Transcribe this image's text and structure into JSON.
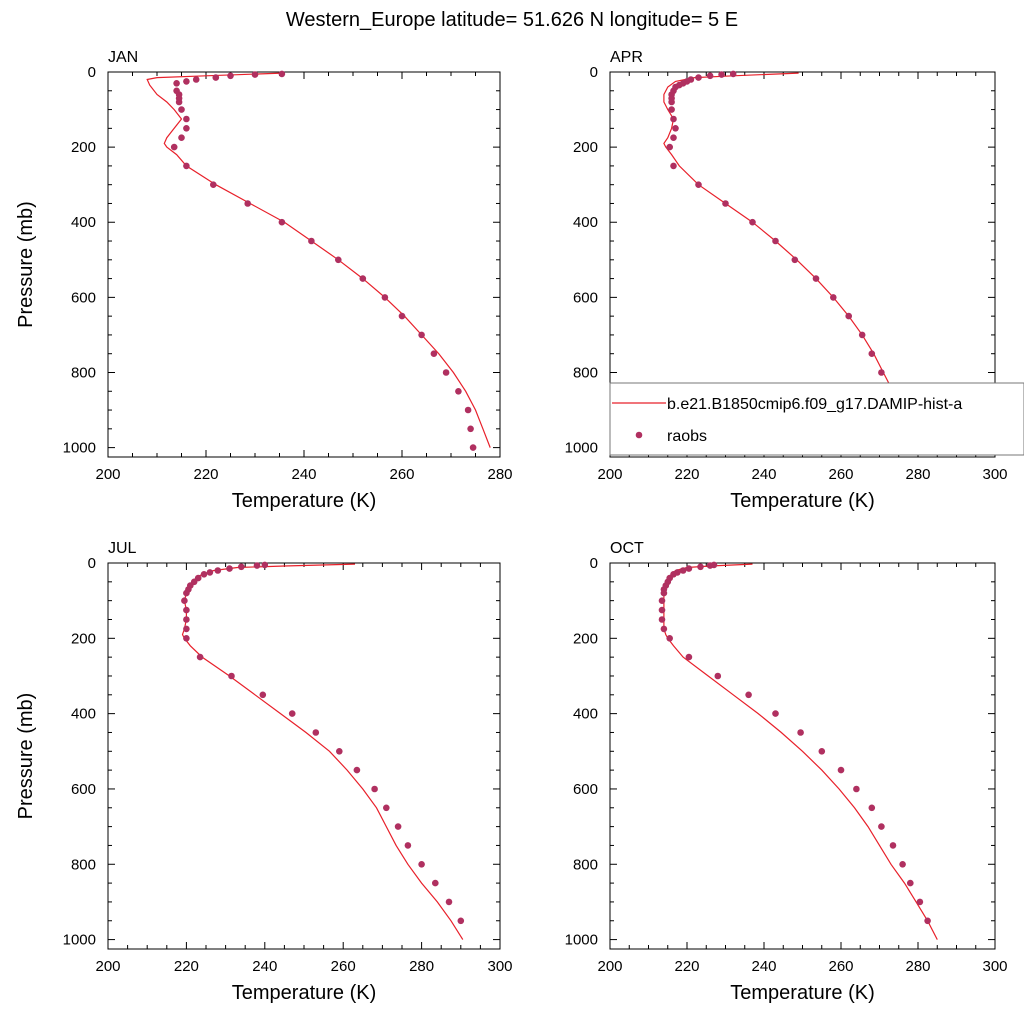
{
  "title": "Western_Europe  latitude= 51.626 N longitude= 5 E",
  "legend": {
    "placement": "inside APR panel, lower right",
    "model_label": "b.e21.B1850cmip6.f09_g17.DAMIP-hist-a",
    "obs_label": "raobs"
  },
  "colors": {
    "model_line": "#e8202a",
    "obs_marker": "#b03060",
    "axis": "#000000"
  },
  "chart_data": [
    {
      "type": "line",
      "panel_label": "JAN",
      "xlabel": "Temperature (K)",
      "ylabel": "Pressure (mb)",
      "xlim": [
        200,
        280
      ],
      "ylim": [
        1025,
        0
      ],
      "y_reversed": true,
      "xticks": [
        200,
        220,
        240,
        260,
        280
      ],
      "yticks": [
        0,
        200,
        400,
        600,
        800,
        1000
      ],
      "grid": false,
      "series": [
        {
          "name": "b.e21.B1850cmip6.f09_g17.DAMIP-hist-a",
          "kind": "line",
          "points": [
            [
              235.5,
              3
            ],
            [
              220,
              10
            ],
            [
              210,
              15
            ],
            [
              208,
              20
            ],
            [
              208.5,
              35
            ],
            [
              210,
              60
            ],
            [
              212,
              80
            ],
            [
              213.5,
              100
            ],
            [
              215,
              125
            ],
            [
              213.5,
              150
            ],
            [
              212,
              175
            ],
            [
              211.5,
              190
            ],
            [
              212,
              200
            ],
            [
              214,
              220
            ],
            [
              216,
              250
            ],
            [
              222,
              300
            ],
            [
              229,
              350
            ],
            [
              236,
              400
            ],
            [
              241.5,
              450
            ],
            [
              247,
              500
            ],
            [
              252,
              550
            ],
            [
              256.5,
              600
            ],
            [
              260.5,
              650
            ],
            [
              264,
              700
            ],
            [
              267.5,
              750
            ],
            [
              270.5,
              800
            ],
            [
              273,
              850
            ],
            [
              275,
              900
            ],
            [
              276.5,
              950
            ],
            [
              278,
              1000
            ]
          ]
        },
        {
          "name": "raobs",
          "kind": "scatter",
          "points": [
            [
              235.5,
              5
            ],
            [
              230,
              7
            ],
            [
              225,
              10
            ],
            [
              222,
              15
            ],
            [
              218,
              20
            ],
            [
              216,
              25
            ],
            [
              214,
              30
            ],
            [
              214,
              50
            ],
            [
              214.5,
              60
            ],
            [
              214.5,
              70
            ],
            [
              214.5,
              80
            ],
            [
              215,
              100
            ],
            [
              216,
              125
            ],
            [
              216,
              150
            ],
            [
              215,
              175
            ],
            [
              213.5,
              200
            ],
            [
              216,
              250
            ],
            [
              221.5,
              300
            ],
            [
              228.5,
              350
            ],
            [
              235.5,
              400
            ],
            [
              241.5,
              450
            ],
            [
              247,
              500
            ],
            [
              252,
              550
            ],
            [
              256.5,
              600
            ],
            [
              260,
              650
            ],
            [
              264,
              700
            ],
            [
              266.5,
              750
            ],
            [
              269,
              800
            ],
            [
              271.5,
              850
            ],
            [
              273.5,
              900
            ],
            [
              274,
              950
            ],
            [
              274.5,
              1000
            ]
          ]
        }
      ]
    },
    {
      "type": "line",
      "panel_label": "APR",
      "xlabel": "Temperature (K)",
      "ylabel": "",
      "xlim": [
        200,
        300
      ],
      "ylim": [
        1025,
        0
      ],
      "y_reversed": true,
      "xticks": [
        200,
        220,
        240,
        260,
        280,
        300
      ],
      "yticks": [
        0,
        200,
        400,
        600,
        800,
        1000
      ],
      "grid": false,
      "series": [
        {
          "name": "b.e21.B1850cmip6.f09_g17.DAMIP-hist-a",
          "kind": "line",
          "points": [
            [
              249,
              3
            ],
            [
              232,
              10
            ],
            [
              222,
              15
            ],
            [
              217,
              25
            ],
            [
              215,
              40
            ],
            [
              214,
              60
            ],
            [
              214,
              80
            ],
            [
              215,
              100
            ],
            [
              216.5,
              125
            ],
            [
              216,
              150
            ],
            [
              215,
              175
            ],
            [
              214,
              190
            ],
            [
              214.5,
              200
            ],
            [
              216,
              220
            ],
            [
              218,
              250
            ],
            [
              223,
              300
            ],
            [
              230,
              350
            ],
            [
              237,
              400
            ],
            [
              243,
              450
            ],
            [
              248.5,
              500
            ],
            [
              253.5,
              550
            ],
            [
              258,
              600
            ],
            [
              262,
              650
            ],
            [
              265.5,
              700
            ],
            [
              268.5,
              750
            ],
            [
              271,
              800
            ],
            [
              273.5,
              850
            ],
            [
              276.5,
              900
            ],
            [
              280,
              950
            ],
            [
              283,
              1000
            ]
          ]
        },
        {
          "name": "raobs",
          "kind": "scatter",
          "points": [
            [
              232,
              5
            ],
            [
              229,
              7
            ],
            [
              226,
              10
            ],
            [
              223,
              15
            ],
            [
              221,
              20
            ],
            [
              220,
              25
            ],
            [
              219,
              30
            ],
            [
              218,
              35
            ],
            [
              217,
              40
            ],
            [
              216.5,
              50
            ],
            [
              216,
              60
            ],
            [
              216,
              70
            ],
            [
              216,
              80
            ],
            [
              216,
              100
            ],
            [
              216.5,
              125
            ],
            [
              217,
              150
            ],
            [
              216.5,
              175
            ],
            [
              215.5,
              200
            ],
            [
              216.5,
              250
            ],
            [
              223,
              300
            ],
            [
              230,
              350
            ],
            [
              237,
              400
            ],
            [
              243,
              450
            ],
            [
              248,
              500
            ],
            [
              253.5,
              550
            ],
            [
              258,
              600
            ],
            [
              262,
              650
            ],
            [
              265.5,
              700
            ],
            [
              268,
              750
            ],
            [
              270.5,
              800
            ],
            [
              273.5,
              850
            ],
            [
              276.5,
              900
            ],
            [
              280.5,
              950
            ]
          ]
        }
      ]
    },
    {
      "type": "line",
      "panel_label": "JUL",
      "xlabel": "Temperature (K)",
      "ylabel": "Pressure (mb)",
      "xlim": [
        200,
        300
      ],
      "ylim": [
        1025,
        0
      ],
      "y_reversed": true,
      "xticks": [
        200,
        220,
        240,
        260,
        280,
        300
      ],
      "yticks": [
        0,
        200,
        400,
        600,
        800,
        1000
      ],
      "grid": false,
      "series": [
        {
          "name": "b.e21.B1850cmip6.f09_g17.DAMIP-hist-a",
          "kind": "line",
          "points": [
            [
              263,
              3
            ],
            [
              245,
              8
            ],
            [
              233,
              12
            ],
            [
              227,
              20
            ],
            [
              223,
              35
            ],
            [
              221,
              55
            ],
            [
              220,
              80
            ],
            [
              219.5,
              100
            ],
            [
              220,
              125
            ],
            [
              220,
              150
            ],
            [
              219.5,
              175
            ],
            [
              219,
              190
            ],
            [
              219.5,
              200
            ],
            [
              221,
              220
            ],
            [
              224,
              250
            ],
            [
              231,
              300
            ],
            [
              237.5,
              350
            ],
            [
              244,
              400
            ],
            [
              250.5,
              450
            ],
            [
              256.5,
              500
            ],
            [
              261,
              550
            ],
            [
              265,
              600
            ],
            [
              268.5,
              650
            ],
            [
              271,
              700
            ],
            [
              273.5,
              750
            ],
            [
              276.5,
              800
            ],
            [
              280,
              850
            ],
            [
              284,
              900
            ],
            [
              287.5,
              950
            ],
            [
              290.5,
              1000
            ]
          ]
        },
        {
          "name": "raobs",
          "kind": "scatter",
          "points": [
            [
              240,
              5
            ],
            [
              238,
              7
            ],
            [
              234,
              10
            ],
            [
              231,
              15
            ],
            [
              228,
              20
            ],
            [
              226,
              25
            ],
            [
              224.5,
              30
            ],
            [
              223,
              40
            ],
            [
              222,
              50
            ],
            [
              221,
              60
            ],
            [
              220.5,
              70
            ],
            [
              220,
              80
            ],
            [
              219.5,
              100
            ],
            [
              220,
              125
            ],
            [
              220,
              150
            ],
            [
              220,
              175
            ],
            [
              220,
              200
            ],
            [
              223.5,
              250
            ],
            [
              231.5,
              300
            ],
            [
              239.5,
              350
            ],
            [
              247,
              400
            ],
            [
              253,
              450
            ],
            [
              259,
              500
            ],
            [
              263.5,
              550
            ],
            [
              268,
              600
            ],
            [
              271,
              650
            ],
            [
              274,
              700
            ],
            [
              276.5,
              750
            ],
            [
              280,
              800
            ],
            [
              283.5,
              850
            ],
            [
              287,
              900
            ],
            [
              290,
              950
            ]
          ]
        }
      ]
    },
    {
      "type": "line",
      "panel_label": "OCT",
      "xlabel": "Temperature (K)",
      "ylabel": "",
      "xlim": [
        200,
        300
      ],
      "ylim": [
        1025,
        0
      ],
      "y_reversed": true,
      "xticks": [
        200,
        220,
        240,
        260,
        280,
        300
      ],
      "yticks": [
        0,
        200,
        400,
        600,
        800,
        1000
      ],
      "grid": false,
      "series": [
        {
          "name": "b.e21.B1850cmip6.f09_g17.DAMIP-hist-a",
          "kind": "line",
          "points": [
            [
              237,
              3
            ],
            [
              226,
              8
            ],
            [
              220,
              12
            ],
            [
              217,
              20
            ],
            [
              215.5,
              35
            ],
            [
              214.5,
              55
            ],
            [
              214,
              80
            ],
            [
              214,
              100
            ],
            [
              214,
              125
            ],
            [
              214,
              150
            ],
            [
              214,
              175
            ],
            [
              214.5,
              190
            ],
            [
              215,
              200
            ],
            [
              216.5,
              220
            ],
            [
              219,
              250
            ],
            [
              225.5,
              300
            ],
            [
              232,
              350
            ],
            [
              238.5,
              400
            ],
            [
              244.5,
              450
            ],
            [
              250,
              500
            ],
            [
              255,
              550
            ],
            [
              259.5,
              600
            ],
            [
              263.5,
              650
            ],
            [
              267,
              700
            ],
            [
              270,
              750
            ],
            [
              273,
              800
            ],
            [
              276.5,
              850
            ],
            [
              279.5,
              900
            ],
            [
              282.5,
              950
            ],
            [
              285,
              1000
            ]
          ]
        },
        {
          "name": "raobs",
          "kind": "scatter",
          "points": [
            [
              227,
              5
            ],
            [
              226,
              7
            ],
            [
              223.5,
              10
            ],
            [
              220.5,
              15
            ],
            [
              219,
              20
            ],
            [
              217.5,
              25
            ],
            [
              216.5,
              30
            ],
            [
              215.5,
              40
            ],
            [
              215,
              50
            ],
            [
              214.5,
              60
            ],
            [
              214,
              70
            ],
            [
              214,
              80
            ],
            [
              213.5,
              100
            ],
            [
              213.5,
              125
            ],
            [
              213.5,
              150
            ],
            [
              214,
              175
            ],
            [
              215.5,
              200
            ],
            [
              220.5,
              250
            ],
            [
              228,
              300
            ],
            [
              236,
              350
            ],
            [
              243,
              400
            ],
            [
              249.5,
              450
            ],
            [
              255,
              500
            ],
            [
              260,
              550
            ],
            [
              264,
              600
            ],
            [
              268,
              650
            ],
            [
              270.5,
              700
            ],
            [
              273.5,
              750
            ],
            [
              276,
              800
            ],
            [
              278,
              850
            ],
            [
              280.5,
              900
            ],
            [
              282.5,
              950
            ]
          ]
        }
      ]
    }
  ]
}
